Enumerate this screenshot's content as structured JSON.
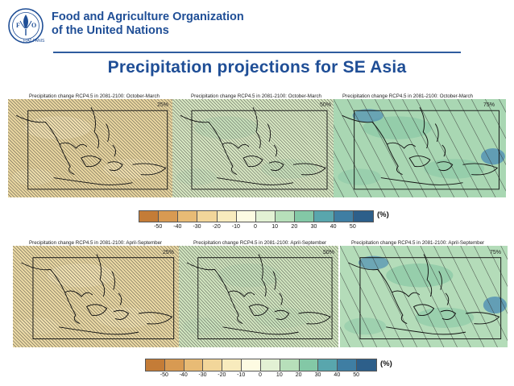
{
  "header": {
    "org_line1": "Food and Agriculture Organization",
    "org_line2": "of the United Nations",
    "logo_icon": "fao-logo-icon"
  },
  "slide": {
    "title": "Precipitation projections for SE Asia"
  },
  "rows": [
    {
      "caption": "Precipitation change RCP4.5 in 2081-2100: October-March",
      "panels": [
        {
          "percentile": "25%",
          "fill": "#e9d6a0"
        },
        {
          "percentile": "50%",
          "fill": "#d7e7c2"
        },
        {
          "percentile": "75%",
          "fill": "#a9d7b3"
        }
      ]
    },
    {
      "caption": "Precipitation change RCP4.5 in 2081-2100: April-September",
      "panels": [
        {
          "percentile": "25%",
          "fill": "#ebd9a4"
        },
        {
          "percentile": "50%",
          "fill": "#d2e6c0"
        },
        {
          "percentile": "75%",
          "fill": "#b4dcb9"
        }
      ]
    }
  ],
  "colorbar": {
    "colors": [
      "#c47c37",
      "#d89a52",
      "#e8bb75",
      "#f2d69a",
      "#f8ebbd",
      "#fdfbe2",
      "#e2f1d4",
      "#b7dfba",
      "#83c8a6",
      "#59a6ad",
      "#3f7ea3",
      "#2d5f8a"
    ],
    "ticks": [
      "-50",
      "-40",
      "-30",
      "-20",
      "-10",
      "0",
      "10",
      "20",
      "30",
      "40",
      "50"
    ],
    "unit": "(%)"
  }
}
